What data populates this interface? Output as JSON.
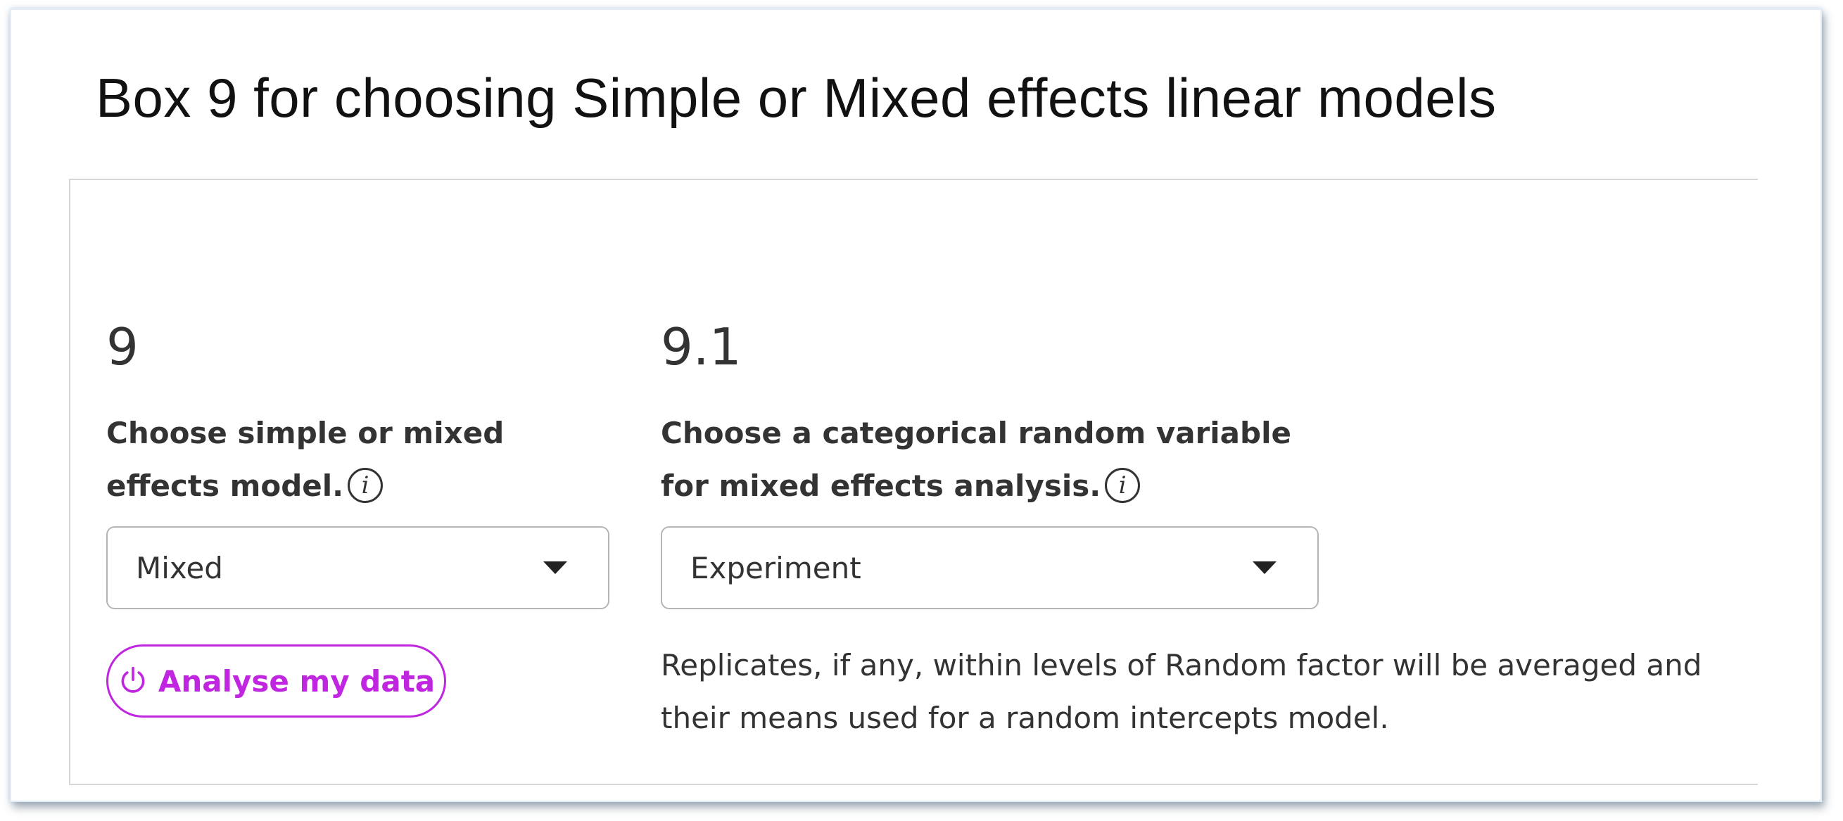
{
  "title": "Box 9 for choosing Simple or Mixed effects linear models",
  "step_a": {
    "number": "9",
    "label": "Choose simple or mixed effects model.",
    "info_glyph": "i",
    "select_value": "Mixed",
    "button_label": "Analyse my data",
    "button_icon": "power-icon"
  },
  "step_b": {
    "number": "9.1",
    "label": "Choose a categorical random variable for mixed effects analysis.",
    "info_glyph": "i",
    "select_value": "Experiment",
    "note": "Replicates, if any, within levels of Random factor will be averaged and their means used for a random intercepts model."
  },
  "colors": {
    "accent": "#c026e0",
    "text": "#333333",
    "border": "#b5b5b5"
  }
}
